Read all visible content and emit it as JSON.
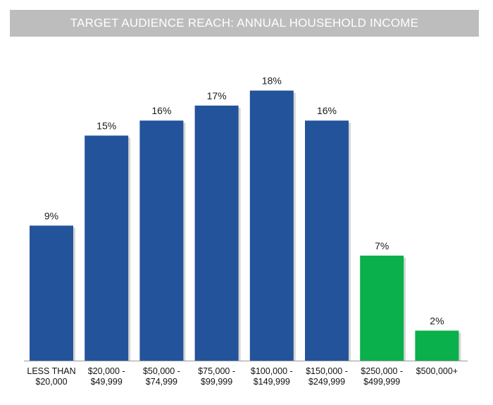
{
  "chart_data": {
    "type": "bar",
    "title": "TARGET AUDIENCE REACH: ANNUAL HOUSEHOLD INCOME",
    "categories": [
      [
        "LESS THAN",
        "$20,000"
      ],
      [
        "$20,000 -",
        "$49,999"
      ],
      [
        "$50,000 -",
        "$74,999"
      ],
      [
        "$75,000 -",
        "$99,999"
      ],
      [
        "$100,000 -",
        "$149,999"
      ],
      [
        "$150,000 -",
        "$249,999"
      ],
      [
        "$250,000 -",
        "$499,999"
      ],
      [
        "$500,000+"
      ]
    ],
    "values": [
      9,
      15,
      16,
      17,
      18,
      16,
      7,
      2
    ],
    "value_labels": [
      "9%",
      "15%",
      "16%",
      "17%",
      "18%",
      "16%",
      "7%",
      "2%"
    ],
    "bar_colors": [
      "#23539b",
      "#23539b",
      "#23539b",
      "#23539b",
      "#23539b",
      "#23539b",
      "#0ab04b",
      "#0ab04b"
    ],
    "ylim": [
      0,
      20
    ],
    "grid": false,
    "legend": "none",
    "xlabel": "",
    "ylabel": ""
  }
}
